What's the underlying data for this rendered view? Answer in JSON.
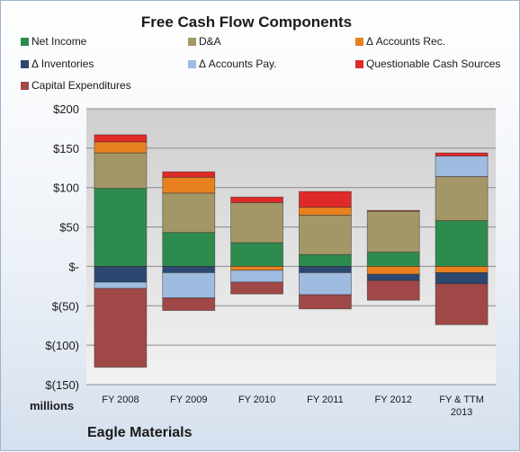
{
  "chart_data": {
    "type": "bar",
    "stacked": true,
    "title": "Free Cash Flow Components",
    "units_label": "millions",
    "source_label": "Eagle Materials",
    "categories": [
      "FY 2008",
      "FY 2009",
      "FY 2010",
      "FY 2011",
      "FY 2012",
      "FY & TTM 2013"
    ],
    "ylim": [
      -150,
      200
    ],
    "yticks": [
      200,
      150,
      100,
      50,
      0,
      -50,
      -100,
      -150
    ],
    "ytick_labels": [
      "$200",
      "$150",
      "$100",
      "$50",
      "$-",
      "$(50)",
      "$(100)",
      "$(150)"
    ],
    "grid": true,
    "legend_position": "top",
    "series": [
      {
        "name": "Net Income",
        "color": "#2e8b4e",
        "values": [
          99,
          43,
          30,
          15,
          18,
          58
        ]
      },
      {
        "name": "D&A",
        "color": "#a39767",
        "values": [
          45,
          50,
          51,
          50,
          52,
          56
        ]
      },
      {
        "name": "Δ Accounts Rec.",
        "color": "#e8801e",
        "values": [
          14,
          20,
          -5,
          10,
          -10,
          -8
        ]
      },
      {
        "name": "Δ Inventories",
        "color": "#2c4870",
        "values": [
          -20,
          -8,
          0,
          -8,
          -8,
          -14
        ]
      },
      {
        "name": "Δ Accounts Pay.",
        "color": "#9fbbe0",
        "values": [
          -8,
          -32,
          -15,
          -28,
          0,
          26
        ]
      },
      {
        "name": "Questionable Cash Sources",
        "color": "#e02a2a",
        "values": [
          9,
          7,
          7,
          20,
          1,
          4
        ]
      },
      {
        "name": "Capital Expenditures",
        "color": "#a04848",
        "values": [
          -100,
          -16,
          -15,
          -18,
          -25,
          -52
        ]
      }
    ]
  }
}
